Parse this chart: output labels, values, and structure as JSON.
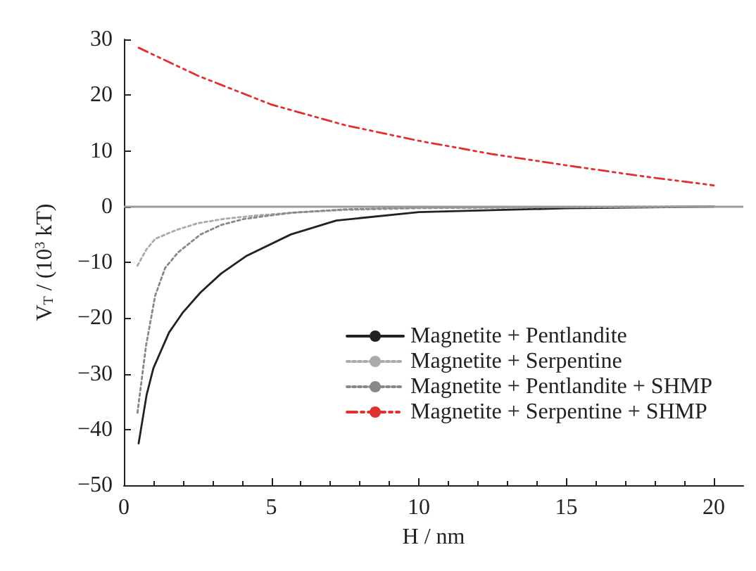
{
  "chart_data": {
    "type": "line",
    "xlabel": "H / nm",
    "ylabel": "V$_{T}$ / (10$^{3}$ kT)",
    "xlim": [
      0,
      21
    ],
    "xticks": [
      0,
      5,
      10,
      15,
      20
    ],
    "ylim": [
      -50,
      30
    ],
    "yticks": [
      -50,
      -40,
      -30,
      -20,
      -10,
      0,
      10,
      20,
      30
    ],
    "grid": false,
    "legend": "right",
    "marker": "none",
    "ref_lines": [
      {
        "axis": "y",
        "value": 0,
        "color": "#999999",
        "line_style": "solid"
      }
    ],
    "series": [
      {
        "name": "Magnetite + Pentlandite",
        "color": "#222222",
        "line_style": "solid",
        "x": [
          0.5,
          0.77,
          1.0,
          1.53,
          2.0,
          2.6,
          3.3,
          4.14,
          5.66,
          7.2,
          10,
          15,
          20
        ],
        "values": [
          -42.5,
          -33.8,
          -29,
          -22.6,
          -19,
          -15.4,
          -12,
          -8.9,
          -5,
          -2.5,
          -1,
          -0.3,
          0
        ]
      },
      {
        "name": "Magnetite + Serpentine",
        "color": "#aaaaaa",
        "line_style": "dotted",
        "x": [
          0.46,
          0.75,
          1.06,
          1.5,
          1.84,
          2.5,
          3.4,
          4.5,
          5.7,
          7.5,
          10,
          15,
          20
        ],
        "values": [
          -10.6,
          -7.8,
          -5.8,
          -4.8,
          -4.1,
          -3,
          -2.2,
          -1.6,
          -1.1,
          -0.6,
          -0.3,
          -0.1,
          0
        ]
      },
      {
        "name": "Magnetite + Pentlandite + SHMP",
        "color": "#888888",
        "line_style": "dotted",
        "x": [
          0.46,
          0.75,
          1.06,
          1.4,
          1.84,
          2.6,
          3.3,
          4.1,
          5.7,
          7.5,
          10,
          15,
          20
        ],
        "values": [
          -37,
          -25,
          -16,
          -11,
          -8.2,
          -5,
          -3.3,
          -2.2,
          -1.1,
          -0.5,
          -0.2,
          -0.1,
          0
        ]
      },
      {
        "name": "Magnetite + Serpentine + SHMP",
        "color": "#e03030",
        "line_style": "dashed",
        "x": [
          0.5,
          2.5,
          5,
          7.5,
          10,
          12.5,
          15,
          17.5,
          20
        ],
        "values": [
          28.5,
          23.5,
          18.3,
          14.6,
          11.8,
          9.4,
          7.4,
          5.5,
          3.8
        ]
      }
    ]
  }
}
